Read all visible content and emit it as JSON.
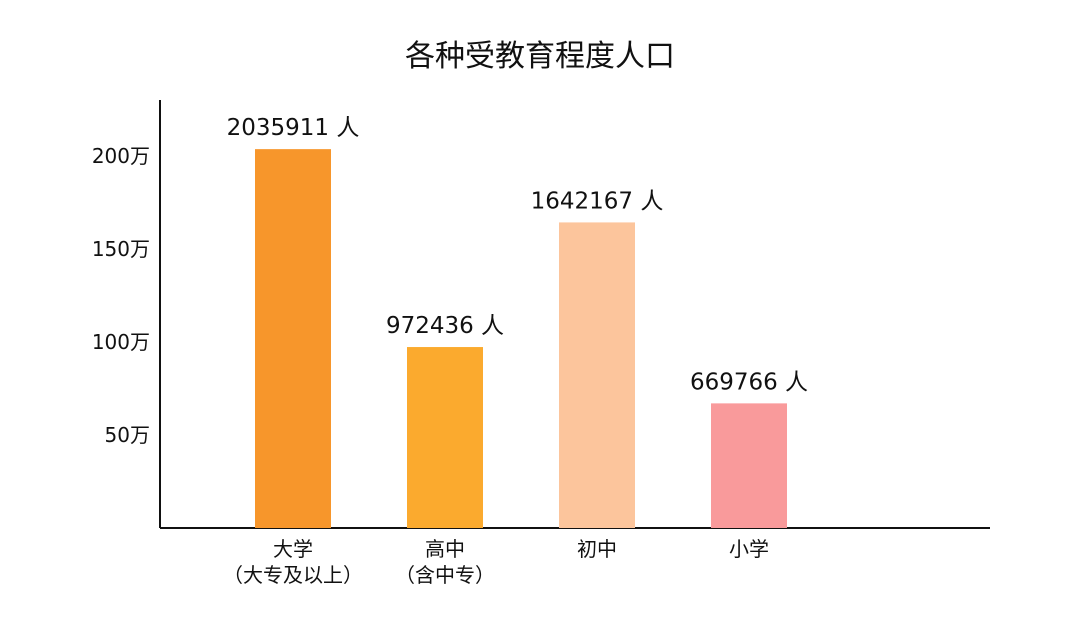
{
  "chart_data": {
    "type": "bar",
    "title": "各种受教育程度人口",
    "xlabel": "",
    "ylabel": "",
    "ylim": [
      0,
      2300000
    ],
    "grid": false,
    "legend": "none",
    "yticks": [
      {
        "value": 500000,
        "label": "50万"
      },
      {
        "value": 1000000,
        "label": "100万"
      },
      {
        "value": 1500000,
        "label": "150万"
      },
      {
        "value": 2000000,
        "label": "200万"
      }
    ],
    "categories": [
      {
        "line1": "大学",
        "line2": "（大专及以上）"
      },
      {
        "line1": "高中",
        "line2": "（含中专）"
      },
      {
        "line1": "初中",
        "line2": ""
      },
      {
        "line1": "小学",
        "line2": ""
      }
    ],
    "values": [
      2035911,
      972436,
      1642167,
      669766
    ],
    "data_labels": [
      "2035911 人",
      "972436 人",
      "1642167 人",
      "669766 人"
    ],
    "colors": [
      "#F7962B",
      "#FBAA2E",
      "#FCC59C",
      "#F99A9B"
    ]
  }
}
